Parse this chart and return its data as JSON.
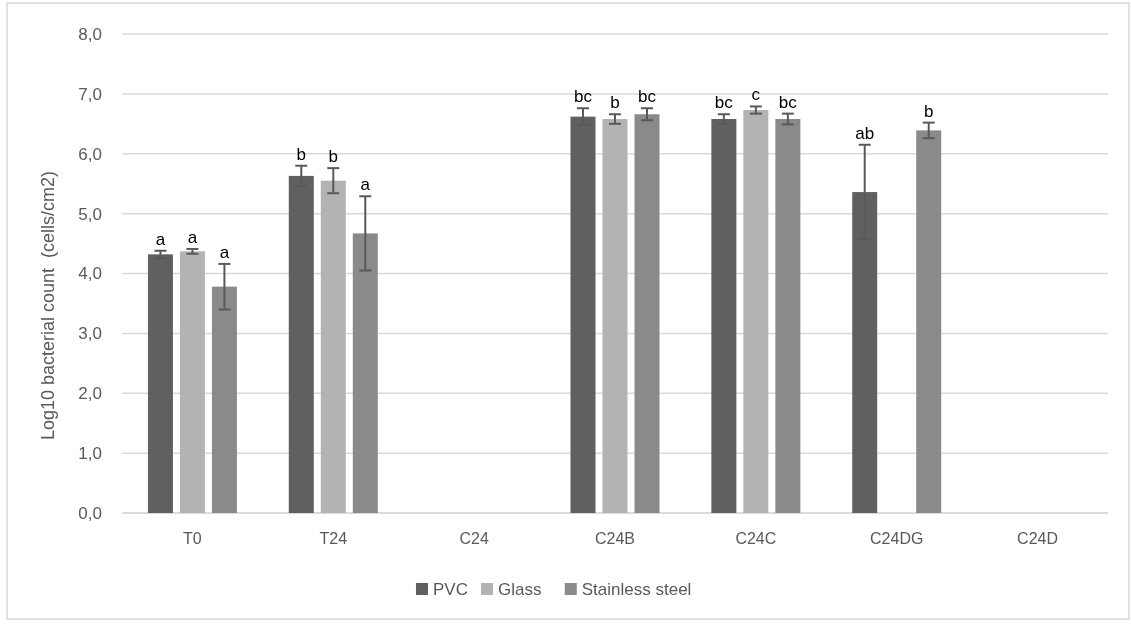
{
  "chart_data": {
    "type": "bar",
    "categories": [
      "T0",
      "T24",
      "C24",
      "C24B",
      "C24C",
      "C24DG",
      "C24D"
    ],
    "ylabel": "Log10 bacterial count  (cells/cm2)",
    "ylim": [
      0,
      8
    ],
    "yticks": [
      {
        "value": 0,
        "label": "0,0"
      },
      {
        "value": 1,
        "label": "1,0"
      },
      {
        "value": 2,
        "label": "2,0"
      },
      {
        "value": 3,
        "label": "3,0"
      },
      {
        "value": 4,
        "label": "4,0"
      },
      {
        "value": 5,
        "label": "5,0"
      },
      {
        "value": 6,
        "label": "6,0"
      },
      {
        "value": 7,
        "label": "7,0"
      },
      {
        "value": 8,
        "label": "8,0"
      }
    ],
    "grid": "y",
    "legend": "bottom",
    "series": [
      {
        "name": "PVC",
        "color": "#606060",
        "values": [
          4.32,
          5.63,
          null,
          6.62,
          6.58,
          5.36,
          null
        ],
        "errors": [
          0.06,
          0.17,
          null,
          0.14,
          0.08,
          0.79,
          null
        ],
        "value_labels": [
          "a",
          "b",
          null,
          "bc",
          "bc",
          "ab",
          null
        ]
      },
      {
        "name": "Glass",
        "color": "#b3b3b3",
        "values": [
          4.37,
          5.55,
          null,
          6.58,
          6.73,
          null,
          null
        ],
        "errors": [
          0.04,
          0.21,
          null,
          0.08,
          0.06,
          null,
          null
        ],
        "value_labels": [
          "a",
          "b",
          null,
          "b",
          "c",
          null,
          null
        ]
      },
      {
        "name": "Stainless steel",
        "color": "#8a8a8a",
        "values": [
          3.78,
          4.67,
          null,
          6.66,
          6.58,
          6.39,
          null
        ],
        "errors": [
          0.38,
          0.62,
          null,
          0.1,
          0.09,
          0.13,
          null
        ],
        "value_labels": [
          "a",
          "a",
          null,
          "bc",
          "bc",
          "b",
          null
        ]
      }
    ]
  }
}
